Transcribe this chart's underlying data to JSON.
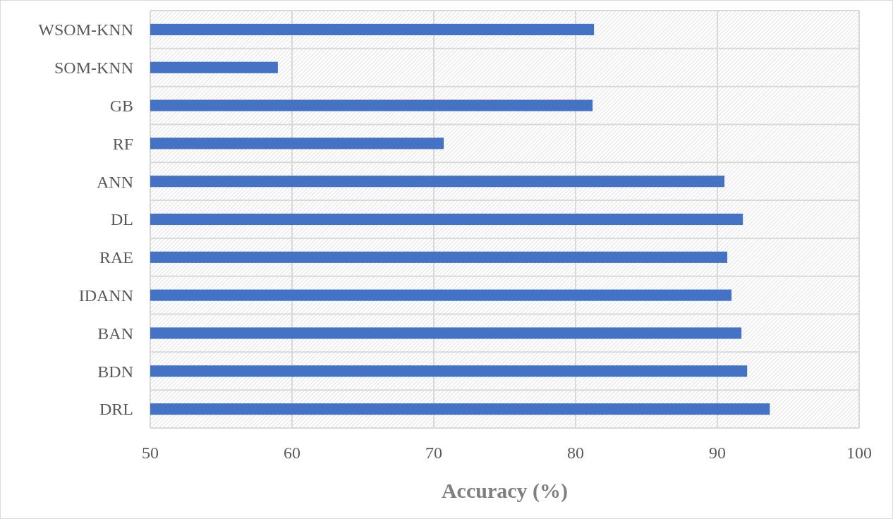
{
  "chart_data": {
    "type": "bar",
    "orientation": "horizontal",
    "xlabel": "Accuracy (%)",
    "categories": [
      "WSOM-KNN",
      "SOM-KNN",
      "GB",
      "RF",
      "ANN",
      "DL",
      "RAE",
      "IDANN",
      "BAN",
      "BDN",
      "DRL"
    ],
    "values": [
      81.3,
      59.0,
      81.2,
      70.7,
      90.5,
      91.8,
      90.7,
      91.0,
      91.7,
      92.1,
      93.7
    ],
    "color": "#4472c4",
    "xlim": [
      50,
      100
    ],
    "xticks": [
      50,
      60,
      70,
      80,
      90,
      100
    ],
    "grid": true
  }
}
